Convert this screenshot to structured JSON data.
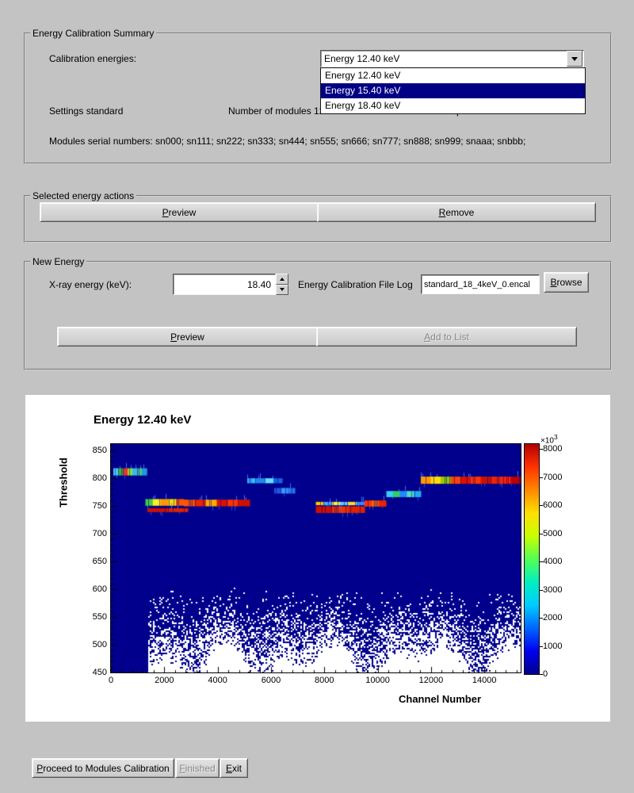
{
  "colors": {
    "window_bg": "#c3c3c3",
    "button_face": "#d4d4d4",
    "selection_bg": "#000084",
    "selection_text": "#ffffff",
    "plot_bg": "#ffffff"
  },
  "summary": {
    "title": "Energy Calibration Summary",
    "calibration_energies_label": "Calibration energies:",
    "combo_value": "Energy 12.40 keV",
    "dropdown": {
      "items": [
        "Energy 12.40 keV",
        "Energy 15.40 keV",
        "Energy 18.40 keV"
      ],
      "highlighted_index": 1
    },
    "settings_label": "Settings standard",
    "modules_label": "Number of modules 12",
    "channels_label": "Channels per module 1280",
    "serials_label": "Modules serial numbers: sn000; sn111; sn222; sn333; sn444; sn555; sn666; sn777; sn888; sn999; snaaa; snbbb;"
  },
  "selected_actions": {
    "title": "Selected energy actions",
    "preview_label": "Preview",
    "remove_label": "Remove"
  },
  "new_energy": {
    "title": "New Energy",
    "xray_label": "X-ray energy (keV):",
    "energy_value": "18.40",
    "file_log_label": "Energy Calibration File Log",
    "file_value": "standard_18_4keV_0.encal",
    "browse_label": "Browse",
    "preview_label": "Preview",
    "add_label": "Add to List"
  },
  "footer": {
    "proceed_label": "Proceed to Modules Calibration",
    "finished_label": "Finished",
    "exit_label": "Exit"
  },
  "chart_data": {
    "type": "heatmap",
    "title": "Energy 12.40 keV",
    "xlabel": "Channel Number",
    "ylabel": "Threshold",
    "xlim": [
      0,
      15360
    ],
    "ylim": [
      450,
      861
    ],
    "x_ticks": [
      0,
      2000,
      4000,
      6000,
      8000,
      10000,
      12000,
      14000
    ],
    "y_ticks": [
      450,
      500,
      550,
      600,
      650,
      700,
      750,
      800,
      850
    ],
    "low_color": "#00008c",
    "colorbar": {
      "min": 0,
      "max": 8000,
      "ticks": [
        0,
        1000,
        2000,
        3000,
        4000,
        5000,
        6000,
        7000,
        8000
      ],
      "scale_prefix": "×10",
      "scale_exp": "3",
      "gradient": [
        "#00008c",
        "#0000f0",
        "#0066ff",
        "#00ccff",
        "#00f0c0",
        "#55ff55",
        "#c8ff00",
        "#ffe000",
        "#ff8800",
        "#ff3300",
        "#b40000"
      ]
    },
    "bands": [
      {
        "x0": 90,
        "x1": 1340,
        "th": 811,
        "hu": 13,
        "colors": [
          "#55ccee",
          "#33bb44",
          "#ee3322",
          "#99dd33",
          "#33bbee",
          "#44cc88",
          "#2299dd"
        ]
      },
      {
        "x0": 1277,
        "x1": 2733,
        "th": 756,
        "hu": 12,
        "colors": [
          "#44cc44",
          "#ffee22",
          "#ff9900",
          "#ffdd00",
          "#ff5500"
        ]
      },
      {
        "x0": 2733,
        "x1": 5199,
        "th": 755,
        "hu": 12,
        "colors": [
          "#ff5500",
          "#ee2200",
          "#ffaa00",
          "#dd1100",
          "#ff3300",
          "#cc1100"
        ]
      },
      {
        "x0": 1366,
        "x1": 2882,
        "th": 742,
        "hu": 7,
        "colors": [
          "#cc1100",
          "#dd2200"
        ]
      },
      {
        "x0": 5110,
        "x1": 6417,
        "th": 795,
        "hu": 9,
        "colors": [
          "#33bbff",
          "#2288ee",
          "#66ddff",
          "#1166dd"
        ]
      },
      {
        "x0": 6120,
        "x1": 6892,
        "th": 777,
        "hu": 10,
        "colors": [
          "#2255dd",
          "#3399ff",
          "#2277ee"
        ]
      },
      {
        "x0": 7665,
        "x1": 9506,
        "th": 743,
        "hu": 12,
        "colors": [
          "#cc1100",
          "#ee3300",
          "#dd2200"
        ]
      },
      {
        "x0": 7665,
        "x1": 9506,
        "th": 754,
        "hu": 6,
        "colors": [
          "#ffcc00",
          "#44aaff",
          "#ffee44",
          "#66ccff",
          "#ffdd22",
          "#3388ff"
        ]
      },
      {
        "x0": 9506,
        "x1": 10308,
        "th": 754,
        "hu": 11,
        "colors": [
          "#ff3300",
          "#ff6600",
          "#ee2200"
        ]
      },
      {
        "x0": 10308,
        "x1": 11615,
        "th": 771,
        "hu": 11,
        "colors": [
          "#33ccff",
          "#33cc66",
          "#2288ff",
          "#55ddbb",
          "#22aaee"
        ]
      },
      {
        "x0": 11615,
        "x1": 15360,
        "th": 796,
        "hu": 13,
        "colors": [
          "#ff9900",
          "#ffdd00",
          "#99cc00",
          "#ff4400",
          "#dd1100",
          "#ff3300",
          "#cc1100",
          "#ee2200",
          "#ff2200",
          "#bb0000"
        ]
      }
    ]
  }
}
